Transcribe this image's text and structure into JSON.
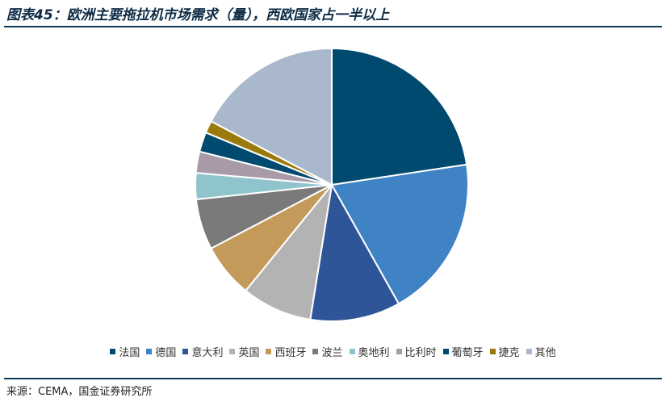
{
  "header": {
    "title": "图表45：欧洲主要拖拉机市场需求（量），西欧国家占一半以上"
  },
  "footer": {
    "source": "来源：CEMA，国金证券研究所"
  },
  "chart_data": {
    "type": "pie",
    "title": "",
    "start_angle_deg": 0,
    "direction": "clockwise",
    "legend_position": "bottom",
    "slices": [
      {
        "label": "法国",
        "value": 23.3,
        "color": "#004a70"
      },
      {
        "label": "德国",
        "value": 19.8,
        "color": "#4083c4"
      },
      {
        "label": "意大利",
        "value": 11.0,
        "color": "#2e5597"
      },
      {
        "label": "英国",
        "value": 8.6,
        "color": "#b3b3b3"
      },
      {
        "label": "西班牙",
        "value": 6.6,
        "color": "#c49a5b"
      },
      {
        "label": "波兰",
        "value": 6.2,
        "color": "#7a7a7a"
      },
      {
        "label": "奥地利",
        "value": 3.2,
        "color": "#8fc4cc"
      },
      {
        "label": "比利时",
        "value": 2.6,
        "color": "#a99aa9"
      },
      {
        "label": "葡萄牙",
        "value": 2.4,
        "color": "#004a70"
      },
      {
        "label": "捷克",
        "value": 1.5,
        "color": "#9a7a0a"
      },
      {
        "label": "其他",
        "value": 17.8,
        "color": "#aab8cc"
      }
    ]
  }
}
